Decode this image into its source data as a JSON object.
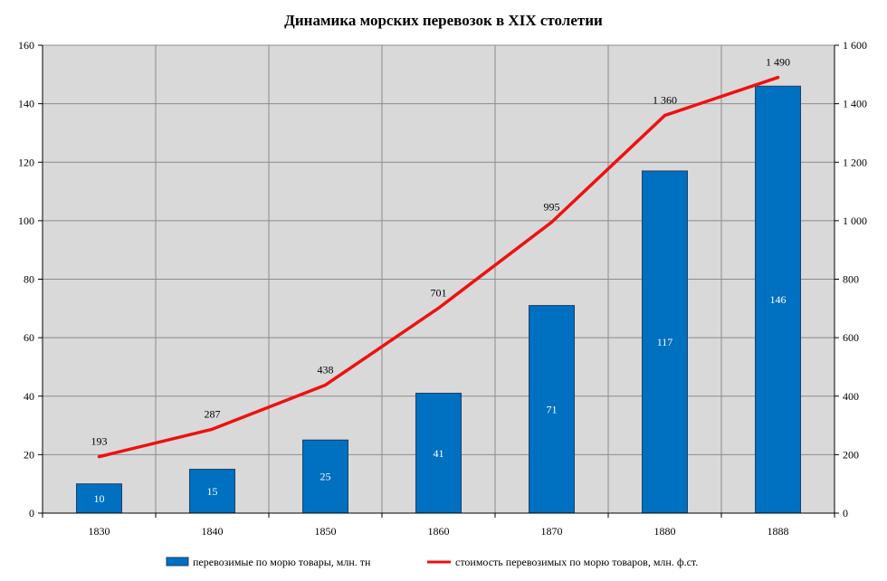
{
  "chart_data": {
    "type": "bar",
    "title": "Динамика морских перевозок в XIX столетии",
    "categories": [
      "1830",
      "1840",
      "1850",
      "1860",
      "1870",
      "1880",
      "1888"
    ],
    "series": [
      {
        "name": "перевозимые по морю товары, млн. тн",
        "type": "bar",
        "axis": "left",
        "values": [
          10,
          15,
          25,
          41,
          71,
          117,
          146
        ],
        "labels": [
          "10",
          "15",
          "25",
          "41",
          "71",
          "117",
          "146"
        ],
        "color": "#0070c0"
      },
      {
        "name": "стоимость перевозимых по морю товаров, млн. ф.ст.",
        "type": "line",
        "axis": "right",
        "values": [
          193,
          287,
          438,
          701,
          995,
          1360,
          1490
        ],
        "labels": [
          "193",
          "287",
          "438",
          "701",
          "995",
          "1 360",
          "1 490"
        ],
        "color": "#ee1111"
      }
    ],
    "y_left": {
      "ylim": [
        0,
        160
      ],
      "ticks": [
        0,
        20,
        40,
        60,
        80,
        100,
        120,
        140,
        160
      ],
      "tick_labels": [
        "0",
        "20",
        "40",
        "60",
        "80",
        "100",
        "120",
        "140",
        "160"
      ]
    },
    "y_right": {
      "ylim": [
        0,
        1600
      ],
      "ticks": [
        0,
        200,
        400,
        600,
        800,
        1000,
        1200,
        1400,
        1600
      ],
      "tick_labels": [
        "0",
        "200",
        "400",
        "600",
        "800",
        "1 000",
        "1 200",
        "1 400",
        "1 600"
      ]
    },
    "grid": true,
    "legend_position": "bottom",
    "plot_background": "#d9d9d9"
  }
}
